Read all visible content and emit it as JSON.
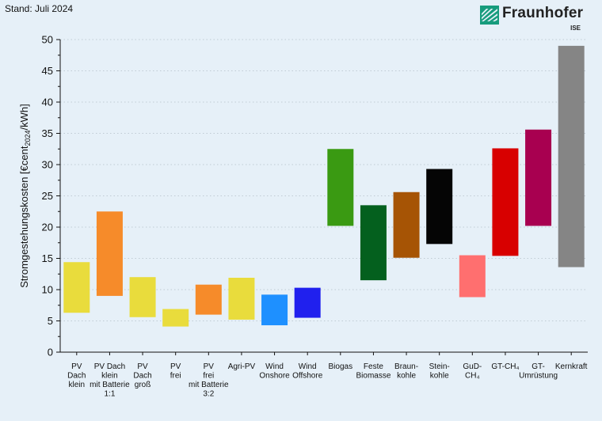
{
  "header": {
    "stand": "Stand: Juli 2024",
    "logo_text": "Fraunhofer",
    "logo_sub": "ISE",
    "logo_color": "#179c7d"
  },
  "chart_data": {
    "type": "bar",
    "title": "",
    "xlabel": "",
    "ylabel": "Stromgestehungskosten [€cent2024/kWh]",
    "ylabel_parts": [
      "Stromgestehungskosten [€cent",
      "2024",
      "/kWh]"
    ],
    "ylim": [
      0,
      50
    ],
    "yticks": [
      0,
      5,
      10,
      15,
      20,
      25,
      30,
      35,
      40,
      45,
      50
    ],
    "grid": true,
    "categories": [
      {
        "label": [
          "PV",
          "Dach",
          "klein"
        ],
        "low": 6.3,
        "high": 14.4,
        "color": "#e9dc3c"
      },
      {
        "label": [
          "PV Dach",
          "klein",
          "mit Batterie",
          "1:1"
        ],
        "low": 9.0,
        "high": 22.5,
        "color": "#f68b2a"
      },
      {
        "label": [
          "PV",
          "Dach",
          "groß"
        ],
        "low": 5.6,
        "high": 12.0,
        "color": "#e9dc3c"
      },
      {
        "label": [
          "PV",
          "frei"
        ],
        "low": 4.1,
        "high": 6.9,
        "color": "#e9dc3c"
      },
      {
        "label": [
          "PV",
          "frei",
          "mit Batterie",
          "3:2"
        ],
        "low": 6.0,
        "high": 10.8,
        "color": "#f68b2a"
      },
      {
        "label": [
          "Agri-PV"
        ],
        "low": 5.2,
        "high": 11.9,
        "color": "#e9dc3c"
      },
      {
        "label": [
          "Wind",
          "Onshore"
        ],
        "low": 4.3,
        "high": 9.2,
        "color": "#1e90ff"
      },
      {
        "label": [
          "Wind",
          "Offshore"
        ],
        "low": 5.5,
        "high": 10.3,
        "color": "#2020ee"
      },
      {
        "label": [
          "Biogas"
        ],
        "low": 20.2,
        "high": 32.5,
        "color": "#3a9a12"
      },
      {
        "label": [
          "Feste",
          "Biomasse"
        ],
        "low": 11.5,
        "high": 23.5,
        "color": "#04601e"
      },
      {
        "label": [
          "Braun-",
          "kohle"
        ],
        "low": 15.1,
        "high": 25.6,
        "color": "#a65405"
      },
      {
        "label": [
          "Stein-",
          "kohle"
        ],
        "low": 17.3,
        "high": 29.3,
        "color": "#050505"
      },
      {
        "label": [
          "GuD-",
          "CH₄"
        ],
        "low": 8.8,
        "high": 15.5,
        "color": "#ff6f6f"
      },
      {
        "label": [
          "GT-CH₄"
        ],
        "low": 15.4,
        "high": 32.6,
        "color": "#d80000"
      },
      {
        "label": [
          "GT-",
          "Umrüstung"
        ],
        "low": 20.2,
        "high": 35.6,
        "color": "#a80050"
      },
      {
        "label": [
          "Kernkraft"
        ],
        "low": 13.6,
        "high": 49.0,
        "color": "#858585"
      }
    ]
  }
}
